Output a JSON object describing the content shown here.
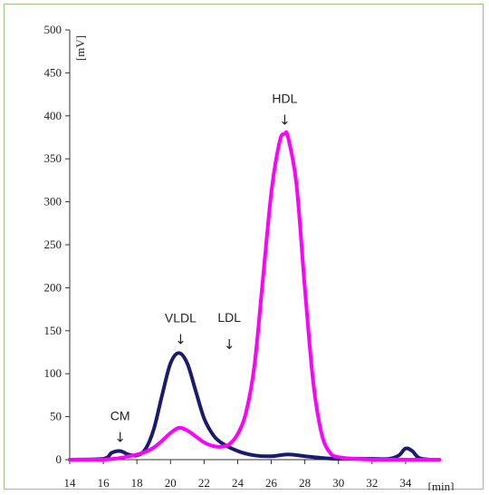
{
  "chart_data": {
    "type": "line",
    "title": "",
    "ylabel": "[mV]",
    "xlabel": "[min]",
    "xlim": [
      14,
      36
    ],
    "ylim": [
      0,
      500
    ],
    "xticks": [
      14,
      16,
      18,
      20,
      22,
      24,
      26,
      28,
      30,
      32,
      34
    ],
    "yticks": [
      0,
      50,
      100,
      150,
      200,
      250,
      300,
      350,
      400,
      450,
      500
    ],
    "grid": false,
    "series": [
      {
        "color": "#1a1a6e",
        "x": [
          14,
          16,
          16.5,
          17,
          17.5,
          18,
          18.5,
          19,
          19.5,
          20,
          20.5,
          21,
          21.5,
          22,
          22.5,
          23,
          24,
          25,
          26,
          27,
          28,
          29,
          30,
          31,
          32,
          33,
          33.6,
          34,
          34.4,
          34.8,
          35.5,
          36
        ],
        "y": [
          0,
          1,
          8,
          10,
          6,
          5,
          12,
          35,
          75,
          112,
          124,
          112,
          80,
          48,
          30,
          20,
          10,
          5,
          4,
          6,
          4,
          2,
          1,
          1,
          1,
          1,
          5,
          13,
          10,
          2,
          0,
          0
        ]
      },
      {
        "color": "#ff00ff",
        "x": [
          14,
          16,
          17,
          18,
          18.5,
          19,
          19.5,
          20,
          20.5,
          21,
          21.5,
          22,
          22.5,
          23,
          23.5,
          24,
          24.5,
          25,
          25.5,
          26,
          26.5,
          26.8,
          27,
          27.5,
          28,
          28.5,
          29,
          29.5,
          30,
          31,
          32,
          33,
          34,
          35,
          36
        ],
        "y": [
          0,
          0,
          2,
          6,
          9,
          14,
          22,
          31,
          37,
          34,
          27,
          20,
          16,
          15,
          18,
          30,
          55,
          110,
          210,
          310,
          370,
          379,
          375,
          320,
          200,
          90,
          30,
          8,
          3,
          1,
          0,
          0,
          0,
          0,
          0
        ]
      }
    ],
    "annotations": [
      {
        "text": "CM",
        "x": 17.0,
        "y": 10
      },
      {
        "text": "VLDL",
        "x": 20.6,
        "y": 124
      },
      {
        "text": "LDL",
        "x": 23.5,
        "y": 118
      },
      {
        "text": "HDL",
        "x": 26.8,
        "y": 379
      }
    ]
  }
}
